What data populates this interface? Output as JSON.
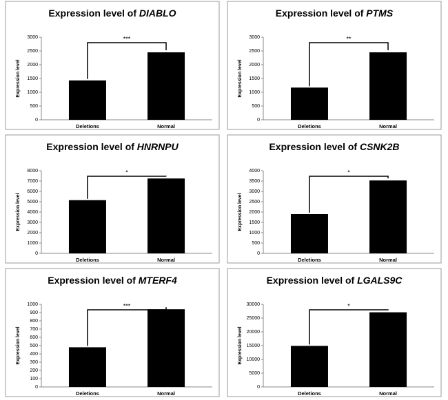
{
  "chart_data": [
    {
      "type": "bar",
      "title": "Expression level of",
      "title_italic": "DIABLO",
      "y_label": "Expression level",
      "categories": [
        "Deletions",
        "Normal"
      ],
      "values": [
        1430,
        2450
      ],
      "color": "#000000",
      "ylim": [
        0,
        3000
      ],
      "yticks": [
        0,
        500,
        1000,
        1500,
        2000,
        2500,
        3000
      ],
      "annotation": "***"
    },
    {
      "type": "bar",
      "title": "Expression level of",
      "title_italic": "PTMS",
      "y_label": "Expression level",
      "categories": [
        "Deletions",
        "Normal"
      ],
      "values": [
        1170,
        2450
      ],
      "color": "#000000",
      "ylim": [
        0,
        3000
      ],
      "yticks": [
        0,
        500,
        1000,
        1500,
        2000,
        2500,
        3000
      ],
      "annotation": "**"
    },
    {
      "type": "bar",
      "title": "Expression level of",
      "title_italic": "HNRNPU",
      "y_label": "Expression level",
      "categories": [
        "Deletions",
        "Normal"
      ],
      "values": [
        5150,
        7250
      ],
      "color": "#000000",
      "ylim": [
        0,
        8000
      ],
      "yticks": [
        0,
        1000,
        2000,
        3000,
        4000,
        5000,
        6000,
        7000,
        8000
      ],
      "annotation": "*"
    },
    {
      "type": "bar",
      "title": "Expression level of",
      "title_italic": "CSNK2B",
      "y_label": "Expression level",
      "categories": [
        "Deletions",
        "Normal"
      ],
      "values": [
        1900,
        3530
      ],
      "color": "#000000",
      "ylim": [
        0,
        4000
      ],
      "yticks": [
        0,
        500,
        1000,
        1500,
        2000,
        2500,
        3000,
        3500,
        4000
      ],
      "annotation": "*"
    },
    {
      "type": "bar",
      "title": "Expression level of",
      "title_italic": "MTERF4",
      "y_label": "Expression level",
      "categories": [
        "Deletions",
        "Normal"
      ],
      "values": [
        480,
        940
      ],
      "color": "#000000",
      "ylim": [
        0,
        1000
      ],
      "yticks": [
        0,
        100,
        200,
        300,
        400,
        500,
        600,
        700,
        800,
        900,
        1000
      ],
      "annotation": "***"
    },
    {
      "type": "bar",
      "title": "Expression level of",
      "title_italic": "LGALS9C",
      "y_label": "Expression level",
      "categories": [
        "Deletions",
        "Normal"
      ],
      "values": [
        14900,
        27100
      ],
      "color": "#000000",
      "ylim": [
        0,
        30000
      ],
      "yticks": [
        0,
        5000,
        10000,
        15000,
        20000,
        25000,
        30000
      ],
      "annotation": "*"
    }
  ]
}
